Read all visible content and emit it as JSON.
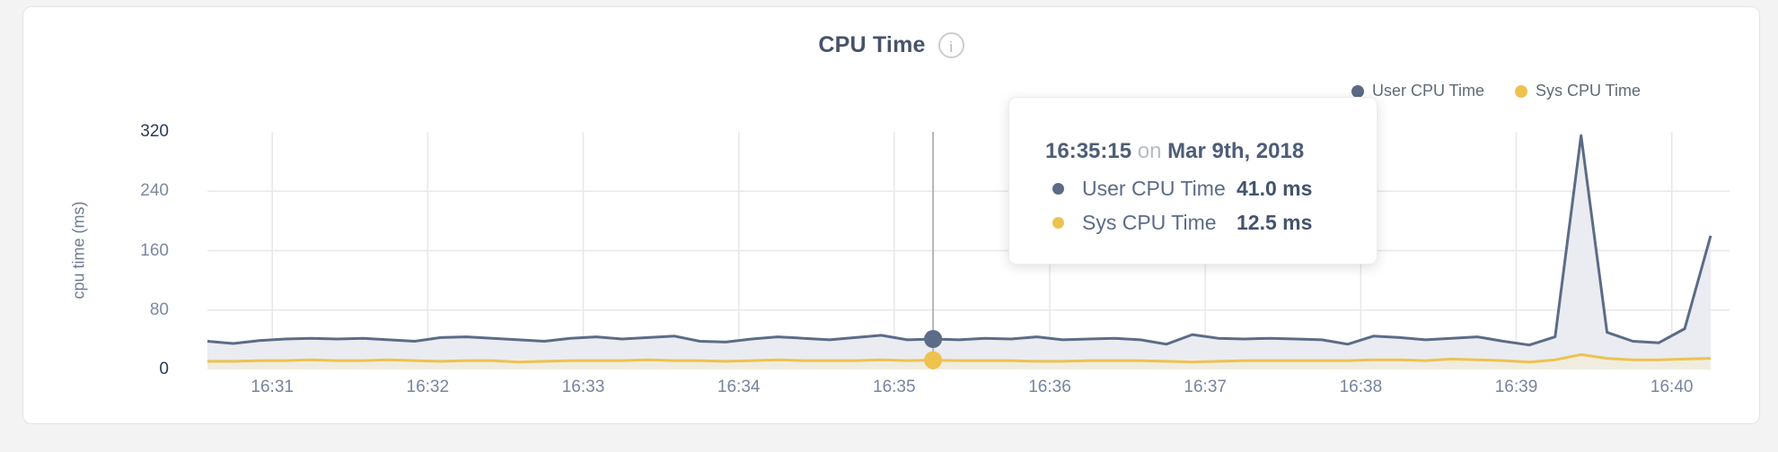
{
  "page": {
    "background": "#f3f3f4",
    "card_background": "#ffffff",
    "card_border": "#e4e4e4"
  },
  "header": {
    "title": "CPU Time",
    "info_icon": "i"
  },
  "legend": {
    "items": [
      {
        "label": "User CPU Time",
        "color": "#5c6b87"
      },
      {
        "label": "Sys CPU Time",
        "color": "#eec24f"
      }
    ]
  },
  "tooltip": {
    "time": "16:35:15",
    "connector": "on",
    "date": "Mar 9th, 2018",
    "rows": [
      {
        "label": "User CPU Time",
        "value": "41.0 ms",
        "color": "#5c6b87"
      },
      {
        "label": "Sys CPU Time",
        "value": "12.5 ms",
        "color": "#eec24f"
      }
    ]
  },
  "chart_data": {
    "type": "area",
    "title": "CPU Time",
    "xlabel": "",
    "ylabel": "cpu time (ms)",
    "ylim": [
      0,
      320
    ],
    "y_ticks": [
      320,
      240,
      160,
      80,
      0
    ],
    "x_ticks": [
      "16:31",
      "16:32",
      "16:33",
      "16:34",
      "16:35",
      "16:36",
      "16:37",
      "16:38",
      "16:39",
      "16:40"
    ],
    "grid": true,
    "legend_position": "top-right",
    "hover_index": 28,
    "hover_line_color": "#b5b5b5",
    "gridline_color": "#e8e8e8",
    "x": [
      "16:30:35",
      "16:30:45",
      "16:30:55",
      "16:31:05",
      "16:31:15",
      "16:31:25",
      "16:31:35",
      "16:31:45",
      "16:31:55",
      "16:32:05",
      "16:32:15",
      "16:32:25",
      "16:32:35",
      "16:32:45",
      "16:32:55",
      "16:33:05",
      "16:33:15",
      "16:33:25",
      "16:33:35",
      "16:33:45",
      "16:33:55",
      "16:34:05",
      "16:34:15",
      "16:34:25",
      "16:34:35",
      "16:34:45",
      "16:34:55",
      "16:35:05",
      "16:35:15",
      "16:35:25",
      "16:35:35",
      "16:35:45",
      "16:35:55",
      "16:36:05",
      "16:36:15",
      "16:36:25",
      "16:36:35",
      "16:36:45",
      "16:36:55",
      "16:37:05",
      "16:37:15",
      "16:37:25",
      "16:37:35",
      "16:37:45",
      "16:37:55",
      "16:38:05",
      "16:38:15",
      "16:38:25",
      "16:38:35",
      "16:38:45",
      "16:38:55",
      "16:39:05",
      "16:39:15",
      "16:39:25",
      "16:39:35",
      "16:39:45",
      "16:39:55",
      "16:40:05",
      "16:40:15"
    ],
    "series": [
      {
        "name": "User CPU Time",
        "color": "#5c6b87",
        "fill": "#eaecf1",
        "values": [
          38,
          35,
          39,
          41,
          42,
          41,
          42,
          40,
          38,
          43,
          44,
          42,
          40,
          38,
          42,
          44,
          41,
          43,
          45,
          38,
          37,
          41,
          44,
          42,
          40,
          43,
          46,
          40,
          41,
          40,
          42,
          41,
          44,
          40,
          41,
          42,
          40,
          34,
          47,
          42,
          41,
          42,
          41,
          40,
          34,
          45,
          43,
          40,
          42,
          44,
          38,
          33,
          44,
          315,
          50,
          38,
          36,
          55,
          180
        ]
      },
      {
        "name": "Sys CPU Time",
        "color": "#eec24f",
        "fill": "#f0ede0",
        "values": [
          11,
          11,
          12,
          12,
          13,
          12,
          12,
          13,
          12,
          11,
          12,
          12,
          10,
          11,
          12,
          12,
          12,
          13,
          12,
          12,
          11,
          12,
          13,
          12,
          12,
          12,
          13,
          12,
          12.5,
          12,
          12,
          12,
          11,
          11,
          12,
          12,
          12,
          11,
          10,
          11,
          12,
          12,
          12,
          12,
          12,
          13,
          13,
          12,
          14,
          13,
          12,
          10,
          13,
          20,
          15,
          13,
          13,
          14,
          15
        ]
      }
    ]
  }
}
